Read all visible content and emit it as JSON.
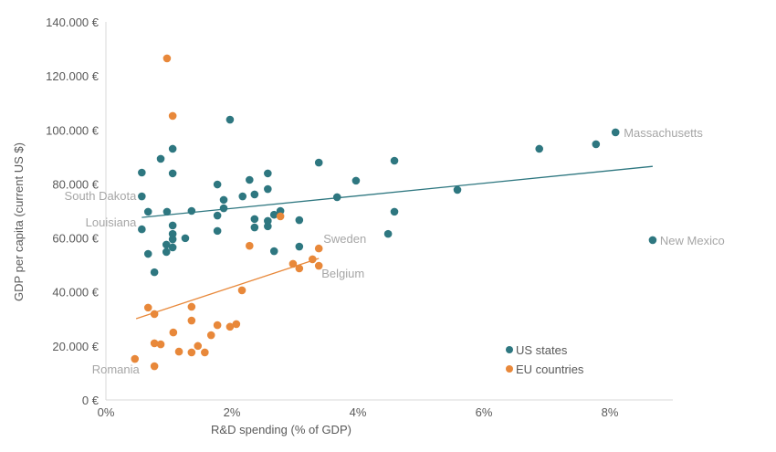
{
  "chart_data": {
    "type": "scatter",
    "title": "",
    "xlabel": "R&D spending (% of GDP)",
    "ylabel": "GDP per capita (current US $)",
    "xlim": [
      0,
      9
    ],
    "ylim": [
      0,
      140000
    ],
    "x_ticks": [
      {
        "value": 0,
        "label": "0%"
      },
      {
        "value": 2,
        "label": "2%"
      },
      {
        "value": 4,
        "label": "4%"
      },
      {
        "value": 6,
        "label": "6%"
      },
      {
        "value": 8,
        "label": "8%"
      }
    ],
    "y_ticks": [
      {
        "value": 0,
        "label": "0 €"
      },
      {
        "value": 20000,
        "label": "20.000 €"
      },
      {
        "value": 40000,
        "label": "40.000 €"
      },
      {
        "value": 60000,
        "label": "60.000 €"
      },
      {
        "value": 80000,
        "label": "80.000 €"
      },
      {
        "value": 100000,
        "label": "100.000 €"
      },
      {
        "value": 120000,
        "label": "120.000 €"
      },
      {
        "value": 140000,
        "label": "140.000 €"
      }
    ],
    "grid": false,
    "legend_position": "bottom-right",
    "series": [
      {
        "name": "US states",
        "color": "#2E7780",
        "trendline": {
          "x": [
            0.57,
            8.68
          ],
          "y": [
            67600,
            86500
          ]
        },
        "points": [
          {
            "x": 1.97,
            "y": 103800
          },
          {
            "x": 1.06,
            "y": 93000
          },
          {
            "x": 0.87,
            "y": 89300
          },
          {
            "x": 0.57,
            "y": 84200
          },
          {
            "x": 1.06,
            "y": 83900
          },
          {
            "x": 1.77,
            "y": 79800
          },
          {
            "x": 2.28,
            "y": 81500
          },
          {
            "x": 2.57,
            "y": 83900
          },
          {
            "x": 1.87,
            "y": 74100
          },
          {
            "x": 2.17,
            "y": 75400
          },
          {
            "x": 2.36,
            "y": 76100
          },
          {
            "x": 2.57,
            "y": 78100
          },
          {
            "x": 0.57,
            "y": 75400,
            "label": "South Dakota"
          },
          {
            "x": 0.67,
            "y": 69700
          },
          {
            "x": 0.97,
            "y": 69700
          },
          {
            "x": 1.36,
            "y": 70000
          },
          {
            "x": 1.87,
            "y": 71000
          },
          {
            "x": 1.77,
            "y": 68300
          },
          {
            "x": 2.77,
            "y": 70000
          },
          {
            "x": 2.67,
            "y": 68600
          },
          {
            "x": 2.36,
            "y": 67000
          },
          {
            "x": 2.57,
            "y": 66300
          },
          {
            "x": 2.36,
            "y": 63900
          },
          {
            "x": 2.57,
            "y": 64300
          },
          {
            "x": 3.07,
            "y": 66600
          },
          {
            "x": 1.77,
            "y": 62600
          },
          {
            "x": 0.57,
            "y": 63200,
            "label": "Louisiana"
          },
          {
            "x": 1.06,
            "y": 64600
          },
          {
            "x": 1.06,
            "y": 61500
          },
          {
            "x": 1.06,
            "y": 59500
          },
          {
            "x": 1.26,
            "y": 59900
          },
          {
            "x": 0.96,
            "y": 57500
          },
          {
            "x": 1.06,
            "y": 56500
          },
          {
            "x": 0.96,
            "y": 54800
          },
          {
            "x": 0.67,
            "y": 54100
          },
          {
            "x": 0.77,
            "y": 47300
          },
          {
            "x": 2.67,
            "y": 55100
          },
          {
            "x": 3.07,
            "y": 56800
          },
          {
            "x": 3.38,
            "y": 87900
          },
          {
            "x": 4.58,
            "y": 88600
          },
          {
            "x": 3.97,
            "y": 81200
          },
          {
            "x": 3.67,
            "y": 75100
          },
          {
            "x": 4.58,
            "y": 69700
          },
          {
            "x": 4.48,
            "y": 61500
          },
          {
            "x": 5.58,
            "y": 77800
          },
          {
            "x": 6.88,
            "y": 93000
          },
          {
            "x": 7.78,
            "y": 94700
          },
          {
            "x": 8.09,
            "y": 99100,
            "label": "Massachusetts"
          },
          {
            "x": 8.68,
            "y": 59200,
            "label": "New Mexico"
          }
        ]
      },
      {
        "name": "EU countries",
        "color": "#E8883A",
        "trendline": {
          "x": [
            0.48,
            3.38
          ],
          "y": [
            30100,
            52400
          ]
        },
        "points": [
          {
            "x": 0.97,
            "y": 126500
          },
          {
            "x": 1.06,
            "y": 105200
          },
          {
            "x": 2.77,
            "y": 68000
          },
          {
            "x": 2.28,
            "y": 57100
          },
          {
            "x": 3.38,
            "y": 56100,
            "label": "Sweden"
          },
          {
            "x": 3.28,
            "y": 52100
          },
          {
            "x": 2.97,
            "y": 50400
          },
          {
            "x": 3.07,
            "y": 48700
          },
          {
            "x": 3.38,
            "y": 49700,
            "label": "Belgium"
          },
          {
            "x": 2.16,
            "y": 40600
          },
          {
            "x": 0.67,
            "y": 34200
          },
          {
            "x": 0.77,
            "y": 31800
          },
          {
            "x": 1.36,
            "y": 34500
          },
          {
            "x": 1.36,
            "y": 29400
          },
          {
            "x": 1.77,
            "y": 27700
          },
          {
            "x": 1.97,
            "y": 27100
          },
          {
            "x": 2.07,
            "y": 28100
          },
          {
            "x": 1.07,
            "y": 25000
          },
          {
            "x": 1.67,
            "y": 24000
          },
          {
            "x": 0.77,
            "y": 21000
          },
          {
            "x": 0.87,
            "y": 20600
          },
          {
            "x": 1.46,
            "y": 20000
          },
          {
            "x": 1.16,
            "y": 17900
          },
          {
            "x": 1.36,
            "y": 17600
          },
          {
            "x": 1.57,
            "y": 17600
          },
          {
            "x": 0.46,
            "y": 15200,
            "label": "Romania"
          },
          {
            "x": 0.77,
            "y": 12500
          }
        ]
      }
    ]
  }
}
